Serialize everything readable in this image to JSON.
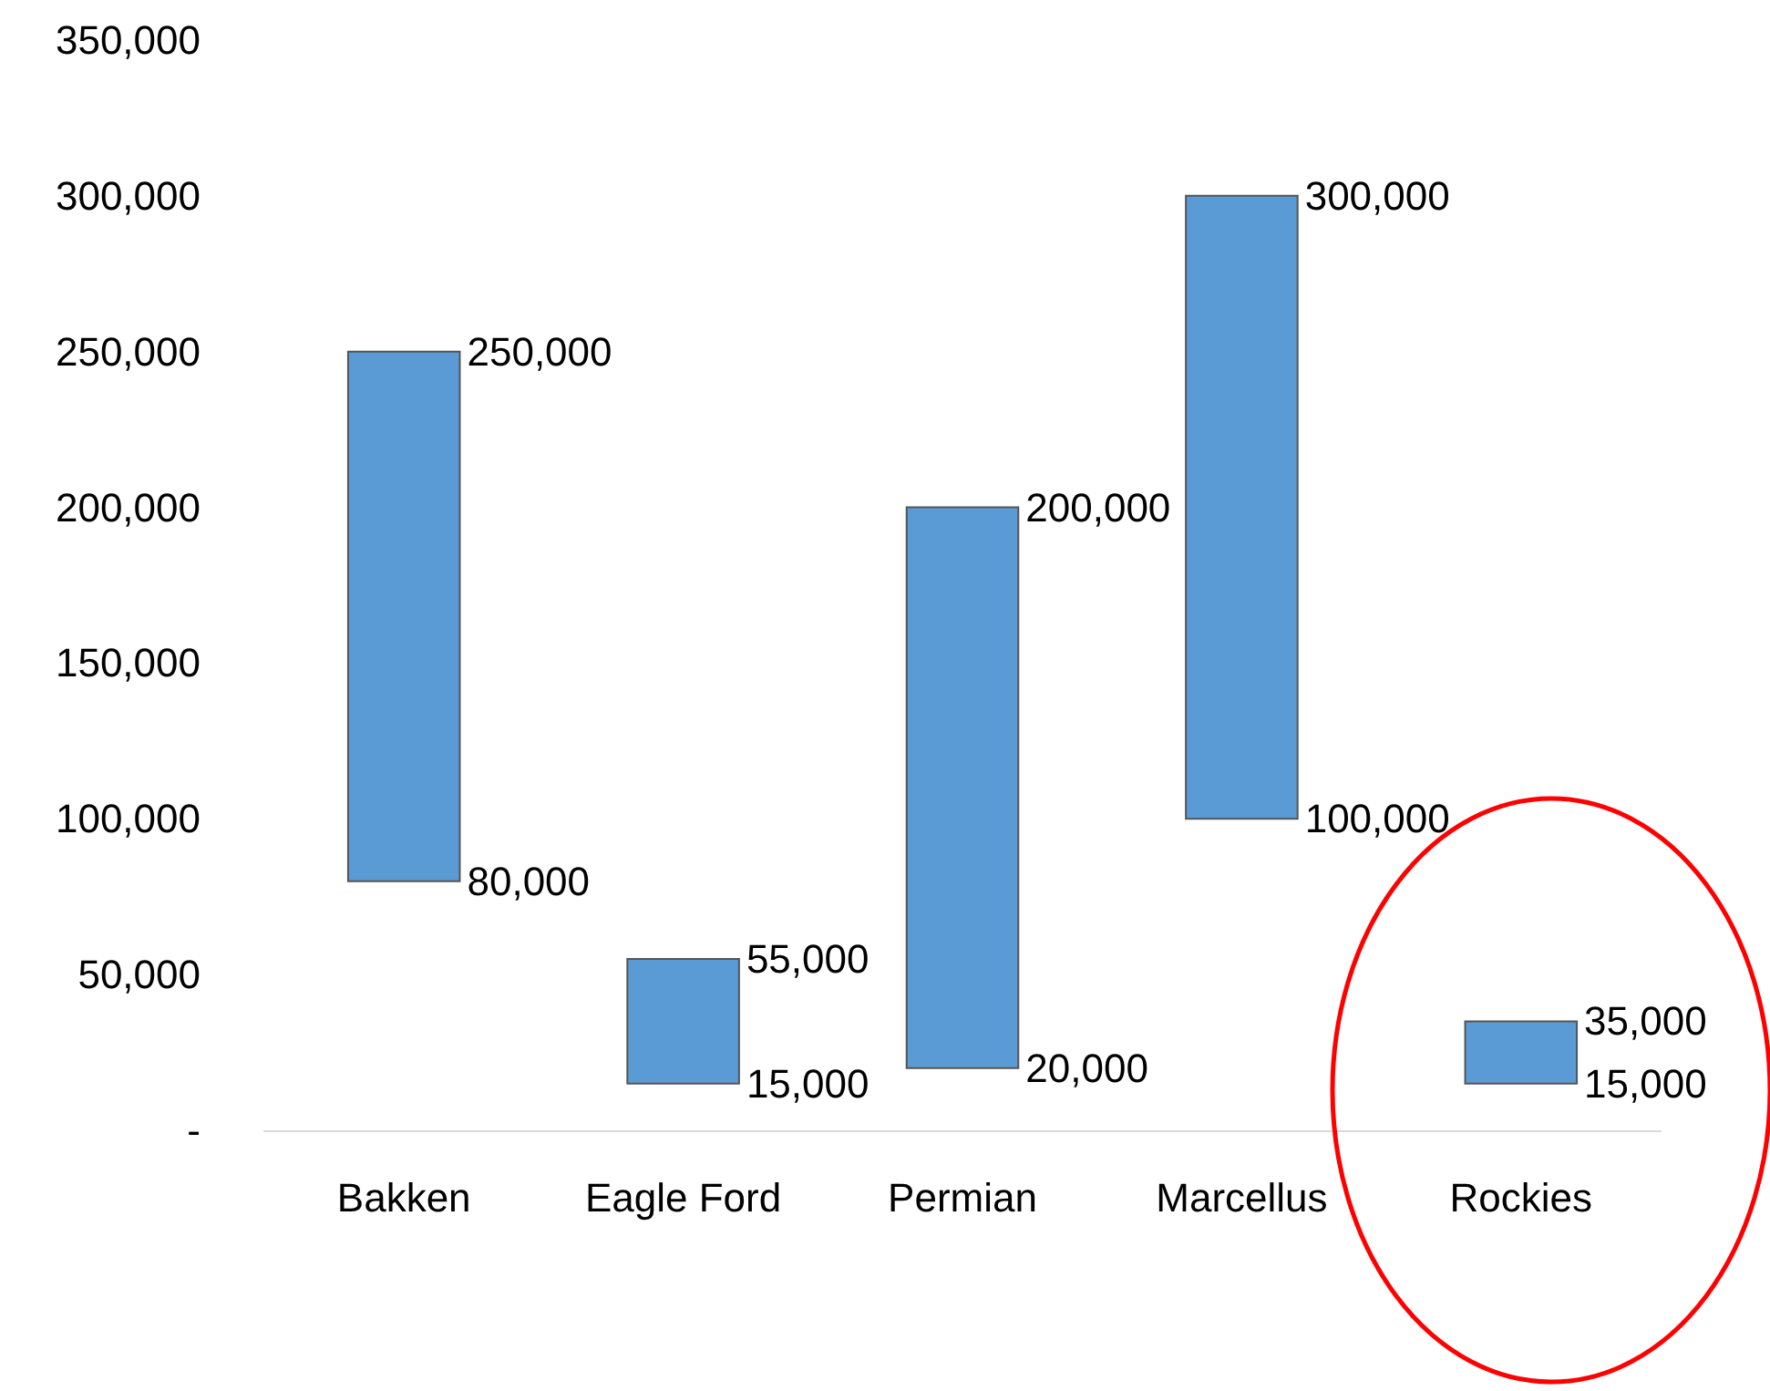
{
  "chart_data": {
    "type": "bar",
    "categories": [
      "Bakken",
      "Eagle Ford",
      "Permian",
      "Marcellus",
      "Rockies"
    ],
    "base": [
      80000,
      15000,
      20000,
      100000,
      15000
    ],
    "values": [
      170000,
      40000,
      180000,
      200000,
      20000
    ],
    "color": "#5b9bd5",
    "ylim": [
      0,
      350000
    ],
    "yticks": [
      {
        "value": 0,
        "label": "-"
      },
      {
        "value": 50000,
        "label": "50,000"
      },
      {
        "value": 100000,
        "label": "100,000"
      },
      {
        "value": 150000,
        "label": "150,000"
      },
      {
        "value": 200000,
        "label": "200,000"
      },
      {
        "value": 250000,
        "label": "250,000"
      },
      {
        "value": 300000,
        "label": "300,000"
      },
      {
        "value": 350000,
        "label": "350,000"
      }
    ],
    "annotations": [
      {
        "text": "250,000",
        "x": "Bakken",
        "y": 250000
      },
      {
        "text": "80,000",
        "x": "Bakken",
        "y": 80000
      },
      {
        "text": "55,000",
        "x": "Eagle Ford",
        "y": 55000
      },
      {
        "text": "15,000",
        "x": "Eagle Ford",
        "y": 15000
      },
      {
        "text": "200,000",
        "x": "Permian",
        "y": 200000
      },
      {
        "text": "20,000",
        "x": "Permian",
        "y": 20000
      },
      {
        "text": "300,000",
        "x": "Marcellus",
        "y": 300000
      },
      {
        "text": "100,000",
        "x": "Marcellus",
        "y": 100000
      },
      {
        "text": "35,000",
        "x": "Rockies",
        "y": 35000
      },
      {
        "text": "15,000",
        "x": "Rockies",
        "y": 15000
      }
    ]
  }
}
